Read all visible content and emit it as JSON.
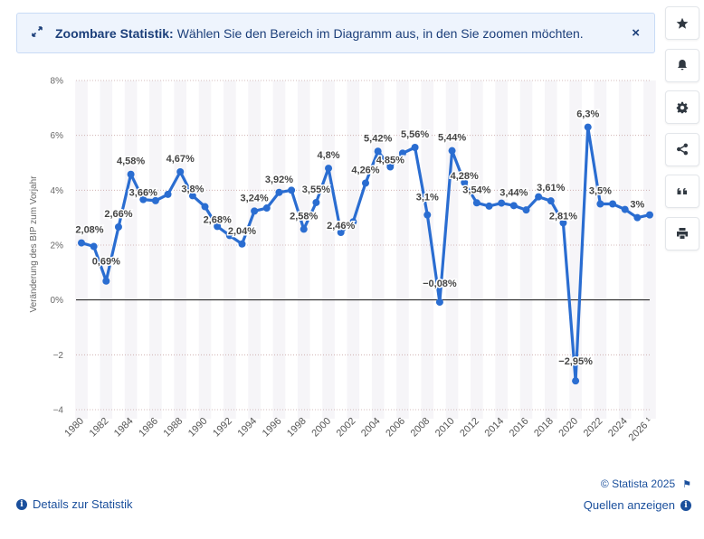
{
  "banner": {
    "title": "Zoombare Statistik:",
    "text": "Wählen Sie den Bereich im Diagramm aus, in den Sie zoomen möchten.",
    "close": "×",
    "expand_icon": "expand-arrows-icon"
  },
  "toolbar": {
    "items": [
      {
        "name": "star-icon"
      },
      {
        "name": "bell-icon"
      },
      {
        "name": "gear-icon"
      },
      {
        "name": "share-icon"
      },
      {
        "name": "quote-icon"
      },
      {
        "name": "print-icon"
      }
    ]
  },
  "footer": {
    "details": "Details zur Statistik",
    "copyright": "© Statista 2025",
    "sources": "Quellen anzeigen"
  },
  "chart_data": {
    "type": "line",
    "ylabel": "Veränderung des BIP zum Vorjahr",
    "ylim": [
      -4,
      8
    ],
    "yticks": [
      -4,
      -2,
      0,
      2,
      4,
      6,
      8
    ],
    "ytick_labels": [
      "−4",
      "−2",
      "0%",
      "2%",
      "4%",
      "6%",
      "8%"
    ],
    "xtick_labels": [
      "1980",
      "1982",
      "1984",
      "1986",
      "1988",
      "1990",
      "1992",
      "1994",
      "1996",
      "1998",
      "2000",
      "2002",
      "2004",
      "2006",
      "2008",
      "2010",
      "2012",
      "2014",
      "2016",
      "2018",
      "2020",
      "2022",
      "2024",
      "2026 ¹"
    ],
    "color": "#2a6dd1",
    "x": [
      1980,
      1981,
      1982,
      1983,
      1984,
      1985,
      1986,
      1987,
      1988,
      1989,
      1990,
      1991,
      1992,
      1993,
      1994,
      1995,
      1996,
      1997,
      1998,
      1999,
      2000,
      2001,
      2002,
      2003,
      2004,
      2005,
      2006,
      2007,
      2008,
      2009,
      2010,
      2011,
      2012,
      2013,
      2014,
      2015,
      2016,
      2017,
      2018,
      2019,
      2020,
      2021,
      2022,
      2023,
      2024,
      2025,
      2026
    ],
    "values": [
      2.08,
      1.95,
      0.69,
      2.66,
      4.58,
      3.66,
      3.62,
      3.85,
      4.67,
      3.8,
      3.4,
      2.68,
      2.35,
      2.04,
      3.24,
      3.35,
      3.92,
      4.0,
      2.58,
      3.55,
      4.8,
      2.46,
      2.85,
      4.26,
      5.42,
      4.85,
      5.35,
      5.56,
      3.1,
      -0.08,
      5.44,
      4.28,
      3.54,
      3.42,
      3.53,
      3.44,
      3.28,
      3.76,
      3.61,
      2.81,
      -2.95,
      6.3,
      3.5,
      3.5,
      3.3,
      3.0,
      3.1
    ],
    "labels": [
      {
        "x": 1980,
        "text": "2,08%"
      },
      {
        "x": 1982,
        "text": "0,69%"
      },
      {
        "x": 1983,
        "text": "2,66%"
      },
      {
        "x": 1984,
        "text": "4,58%"
      },
      {
        "x": 1985,
        "text": "3,66%"
      },
      {
        "x": 1988,
        "text": "4,67%"
      },
      {
        "x": 1989,
        "text": "3,8%"
      },
      {
        "x": 1991,
        "text": "2,68%"
      },
      {
        "x": 1993,
        "text": "2,04%"
      },
      {
        "x": 1994,
        "text": "3,24%"
      },
      {
        "x": 1996,
        "text": "3,92%"
      },
      {
        "x": 1998,
        "text": "2,58%"
      },
      {
        "x": 1999,
        "text": "3,55%"
      },
      {
        "x": 2000,
        "text": "4,8%"
      },
      {
        "x": 2001,
        "text": "2,46%"
      },
      {
        "x": 2003,
        "text": "4,26%"
      },
      {
        "x": 2004,
        "text": "5,42%"
      },
      {
        "x": 2005,
        "text": "4,85%"
      },
      {
        "x": 2007,
        "text": "5,56%"
      },
      {
        "x": 2008,
        "text": "3,1%"
      },
      {
        "x": 2009,
        "text": "−0,08%"
      },
      {
        "x": 2010,
        "text": "5,44%"
      },
      {
        "x": 2011,
        "text": "4,28%"
      },
      {
        "x": 2012,
        "text": "3,54%"
      },
      {
        "x": 2015,
        "text": "3,44%"
      },
      {
        "x": 2018,
        "text": "3,61%"
      },
      {
        "x": 2019,
        "text": "2,81%"
      },
      {
        "x": 2020,
        "text": "−2,95%"
      },
      {
        "x": 2021,
        "text": "6,3%"
      },
      {
        "x": 2022,
        "text": "3,5%"
      },
      {
        "x": 2025,
        "text": "3%"
      }
    ]
  }
}
